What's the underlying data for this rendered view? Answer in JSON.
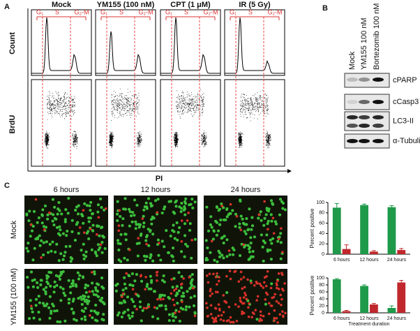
{
  "panel_a": {
    "label": "A",
    "y_labels": [
      "Count",
      "BrdU"
    ],
    "x_label": "PI",
    "columns": [
      {
        "title": "Mock",
        "phases": [
          "G₁",
          "S",
          "G₂-M"
        ]
      },
      {
        "title": "YM155 (100 nM)",
        "phases": [
          "G₁",
          "S",
          "G₂-M"
        ]
      },
      {
        "title": "CPT (1 μM)",
        "phases": [
          "G₁",
          "S",
          "G₂-M"
        ]
      },
      {
        "title": "IR (5 Gy)",
        "phases": [
          "G₁",
          "S",
          "G₂-M"
        ]
      }
    ]
  },
  "panel_b": {
    "label": "B",
    "lanes": [
      "Mock",
      "YM155 100 nM",
      "Bortezomib 100 nM"
    ],
    "blots": [
      "cPARP",
      "cCasp3",
      "LC3-II",
      "α-Tubulin"
    ]
  },
  "panel_c": {
    "label": "C",
    "time_labels": [
      "6 hours",
      "12 hours",
      "24 hours"
    ],
    "row_labels": [
      "Mock",
      "YM155 (100 nM)"
    ]
  },
  "chart_data": [
    {
      "type": "bar",
      "ylabel": "Percent positive",
      "categories": [
        "6 hours",
        "12 hours",
        "24 hours"
      ],
      "ylim": [
        0,
        100
      ],
      "yticks": [
        0,
        20,
        40,
        60,
        80,
        100
      ],
      "series": [
        {
          "color": "#1f9a4a",
          "values": [
            90,
            95,
            91
          ],
          "errors": [
            8,
            2,
            3
          ]
        },
        {
          "color": "#c0282d",
          "values": [
            10,
            5,
            8
          ],
          "errors": [
            8,
            2,
            3
          ]
        }
      ]
    },
    {
      "type": "bar",
      "ylabel": "Percent positive",
      "xlabel": "Treatment duration",
      "categories": [
        "6 hours",
        "12 hours",
        "24 hours"
      ],
      "ylim": [
        0,
        100
      ],
      "yticks": [
        0,
        20,
        40,
        60,
        80,
        100
      ],
      "series": [
        {
          "color": "#1f9a4a",
          "values": [
            96,
            77,
            14
          ],
          "errors": [
            2,
            3,
            6
          ]
        },
        {
          "color": "#c0282d",
          "values": [
            5,
            24,
            87
          ],
          "errors": [
            2,
            3,
            6
          ]
        }
      ]
    }
  ]
}
